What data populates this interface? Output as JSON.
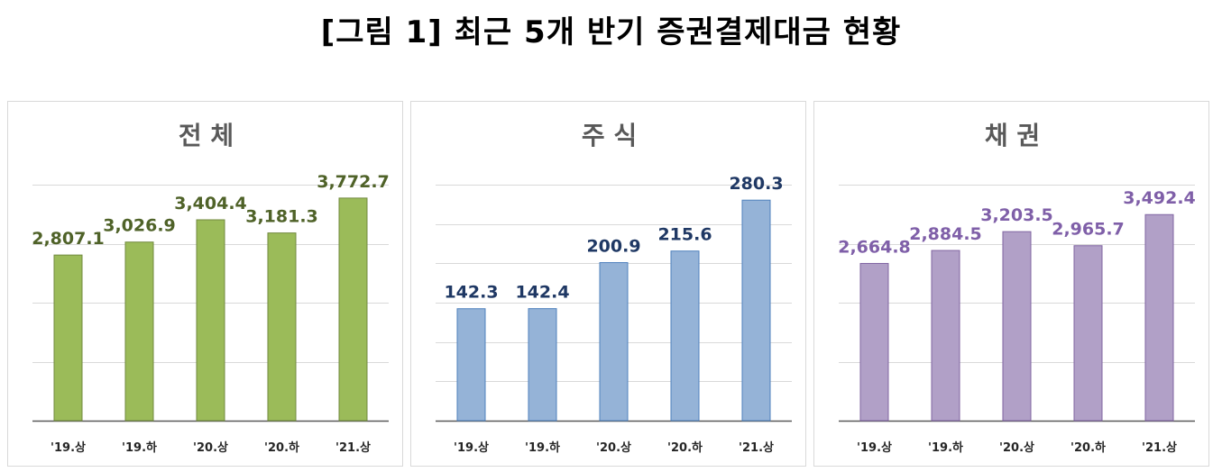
{
  "figure": {
    "title": "[그림 1] 최근 5개 반기 증권결제대금 현황"
  },
  "chart_data": [
    {
      "type": "bar",
      "title": "전 체",
      "categories": [
        "'19.상",
        "'19.하",
        "'20.상",
        "'20.하",
        "'21.상"
      ],
      "values": [
        2807.1,
        3026.9,
        3404.4,
        3181.3,
        3772.7
      ],
      "value_labels": [
        "2,807.1",
        "3,026.9",
        "3,404.4",
        "3,181.3",
        "3,772.7"
      ],
      "ylim": [
        0,
        4000
      ],
      "gridlines": [
        0,
        1000,
        2000,
        3000,
        4000
      ],
      "grid": true,
      "colors": {
        "bar": "#9bbb59",
        "border": "#71893f",
        "label": "#4f6228"
      }
    },
    {
      "type": "bar",
      "title": "주 식",
      "categories": [
        "'19.상",
        "'19.하",
        "'20.상",
        "'20.하",
        "'21.상"
      ],
      "values": [
        142.3,
        142.4,
        200.9,
        215.6,
        280.3
      ],
      "value_labels": [
        "142.3",
        "142.4",
        "200.9",
        "215.6",
        "280.3"
      ],
      "ylim": [
        0,
        300
      ],
      "gridlines": [
        0,
        50,
        100,
        150,
        200,
        250,
        300
      ],
      "grid": true,
      "colors": {
        "bar": "#95b3d7",
        "border": "#4f81bd",
        "label": "#1f3864"
      }
    },
    {
      "type": "bar",
      "title": "채 권",
      "categories": [
        "'19.상",
        "'19.하",
        "'20.상",
        "'20.하",
        "'21.상"
      ],
      "values": [
        2664.8,
        2884.5,
        3203.5,
        2965.7,
        3492.4
      ],
      "value_labels": [
        "2,664.8",
        "2,884.5",
        "3,203.5",
        "2,965.7",
        "3,492.4"
      ],
      "ylim": [
        0,
        4000
      ],
      "gridlines": [
        0,
        1000,
        2000,
        3000,
        4000
      ],
      "grid": true,
      "colors": {
        "bar": "#b1a0c7",
        "border": "#8064a2",
        "label": "#7f5fa8"
      }
    }
  ]
}
